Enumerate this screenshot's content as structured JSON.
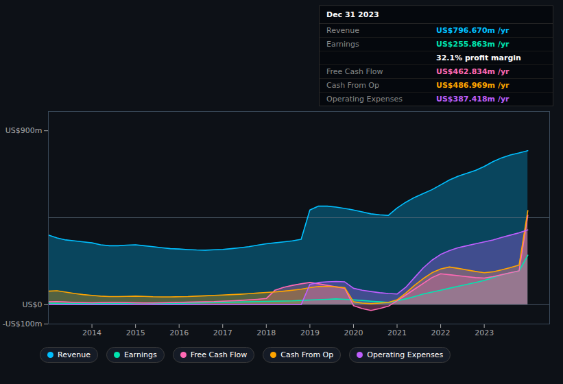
{
  "chart_data": {
    "type": "area",
    "x": [
      2013.0,
      2013.2,
      2013.4,
      2013.6,
      2013.8,
      2014.0,
      2014.2,
      2014.4,
      2014.6,
      2014.8,
      2015.0,
      2015.2,
      2015.4,
      2015.6,
      2015.8,
      2016.0,
      2016.2,
      2016.4,
      2016.6,
      2016.8,
      2017.0,
      2017.2,
      2017.4,
      2017.6,
      2017.8,
      2018.0,
      2018.2,
      2018.4,
      2018.6,
      2018.8,
      2019.0,
      2019.2,
      2019.4,
      2019.6,
      2019.8,
      2020.0,
      2020.2,
      2020.4,
      2020.6,
      2020.8,
      2021.0,
      2021.2,
      2021.4,
      2021.6,
      2021.8,
      2022.0,
      2022.2,
      2022.4,
      2022.6,
      2022.8,
      2023.0,
      2023.2,
      2023.4,
      2023.6,
      2023.8,
      2024.0
    ],
    "xlim": [
      2013.0,
      2024.5
    ],
    "xticks": [
      2014,
      2015,
      2016,
      2017,
      2018,
      2019,
      2020,
      2021,
      2022,
      2023
    ],
    "ylim": [
      -100,
      1000
    ],
    "yticks": [
      {
        "value": -100,
        "label": "-US$100m"
      },
      {
        "value": 0,
        "label": "US$0"
      },
      {
        "value": 900,
        "label": "US$900m"
      }
    ],
    "grid": false,
    "legend": "bottom",
    "reference_lines": [
      0,
      450
    ],
    "series": [
      {
        "name": "Revenue",
        "color": "#00bfff",
        "values": [
          360,
          345,
          335,
          330,
          325,
          320,
          310,
          305,
          305,
          308,
          310,
          305,
          300,
          295,
          290,
          288,
          285,
          283,
          282,
          284,
          286,
          290,
          295,
          300,
          308,
          315,
          320,
          325,
          330,
          338,
          490,
          510,
          510,
          505,
          498,
          490,
          480,
          470,
          465,
          462,
          500,
          530,
          555,
          575,
          595,
          620,
          645,
          665,
          680,
          695,
          715,
          740,
          760,
          775,
          785,
          797
        ]
      },
      {
        "name": "Earnings",
        "color": "#00e5b0",
        "values": [
          8,
          7,
          6,
          6,
          5,
          5,
          5,
          6,
          6,
          7,
          8,
          8,
          7,
          6,
          6,
          7,
          8,
          9,
          10,
          11,
          12,
          13,
          14,
          15,
          16,
          17,
          18,
          19,
          20,
          22,
          24,
          26,
          28,
          30,
          28,
          25,
          22,
          18,
          15,
          12,
          20,
          30,
          42,
          55,
          65,
          75,
          85,
          95,
          105,
          115,
          125,
          140,
          155,
          165,
          175,
          256
        ]
      },
      {
        "name": "Free Cash Flow",
        "color": "#ff69b4",
        "values": [
          15,
          16,
          14,
          12,
          11,
          10,
          11,
          12,
          12,
          11,
          10,
          9,
          9,
          10,
          11,
          12,
          13,
          14,
          15,
          16,
          18,
          20,
          22,
          25,
          28,
          32,
          75,
          90,
          100,
          108,
          115,
          108,
          100,
          92,
          85,
          -5,
          -20,
          -30,
          -20,
          -8,
          20,
          50,
          80,
          110,
          140,
          160,
          155,
          150,
          145,
          140,
          138,
          145,
          155,
          165,
          175,
          463
        ]
      },
      {
        "name": "Cash From Op",
        "color": "#ffa500",
        "values": [
          70,
          72,
          65,
          58,
          52,
          48,
          44,
          42,
          42,
          43,
          44,
          43,
          41,
          40,
          40,
          41,
          42,
          44,
          46,
          48,
          50,
          52,
          54,
          57,
          60,
          63,
          66,
          70,
          75,
          80,
          88,
          94,
          95,
          92,
          88,
          15,
          8,
          5,
          8,
          12,
          25,
          60,
          100,
          135,
          165,
          185,
          195,
          188,
          180,
          172,
          165,
          170,
          180,
          192,
          205,
          487
        ]
      },
      {
        "name": "Operating Expenses",
        "color": "#bf5fff",
        "values": [
          0,
          0,
          0,
          0,
          0,
          0,
          0,
          0,
          0,
          0,
          0,
          0,
          0,
          0,
          0,
          0,
          0,
          0,
          0,
          0,
          0,
          0,
          0,
          0,
          0,
          0,
          0,
          0,
          0,
          0,
          105,
          115,
          118,
          120,
          118,
          85,
          75,
          68,
          62,
          58,
          55,
          90,
          140,
          190,
          230,
          260,
          280,
          295,
          305,
          315,
          325,
          335,
          348,
          360,
          372,
          387
        ]
      }
    ],
    "annotations": [
      {
        "text": "Dec 31 2023"
      },
      {
        "label": "Revenue",
        "text": "US$796.670m /yr",
        "color": "#00bfff"
      },
      {
        "label": "Earnings",
        "text": "US$255.863m /yr",
        "color": "#00e5b0"
      },
      {
        "label": null,
        "text": "32.1% profit margin",
        "color": "white"
      },
      {
        "label": "Free Cash Flow",
        "text": "US$462.834m /yr",
        "color": "#ff69b4"
      },
      {
        "label": "Cash From Op",
        "text": "US$486.969m /yr",
        "color": "#ffa500"
      },
      {
        "label": "Operating Expenses",
        "text": "US$387.418m /yr",
        "color": "#bf5fff"
      }
    ]
  }
}
